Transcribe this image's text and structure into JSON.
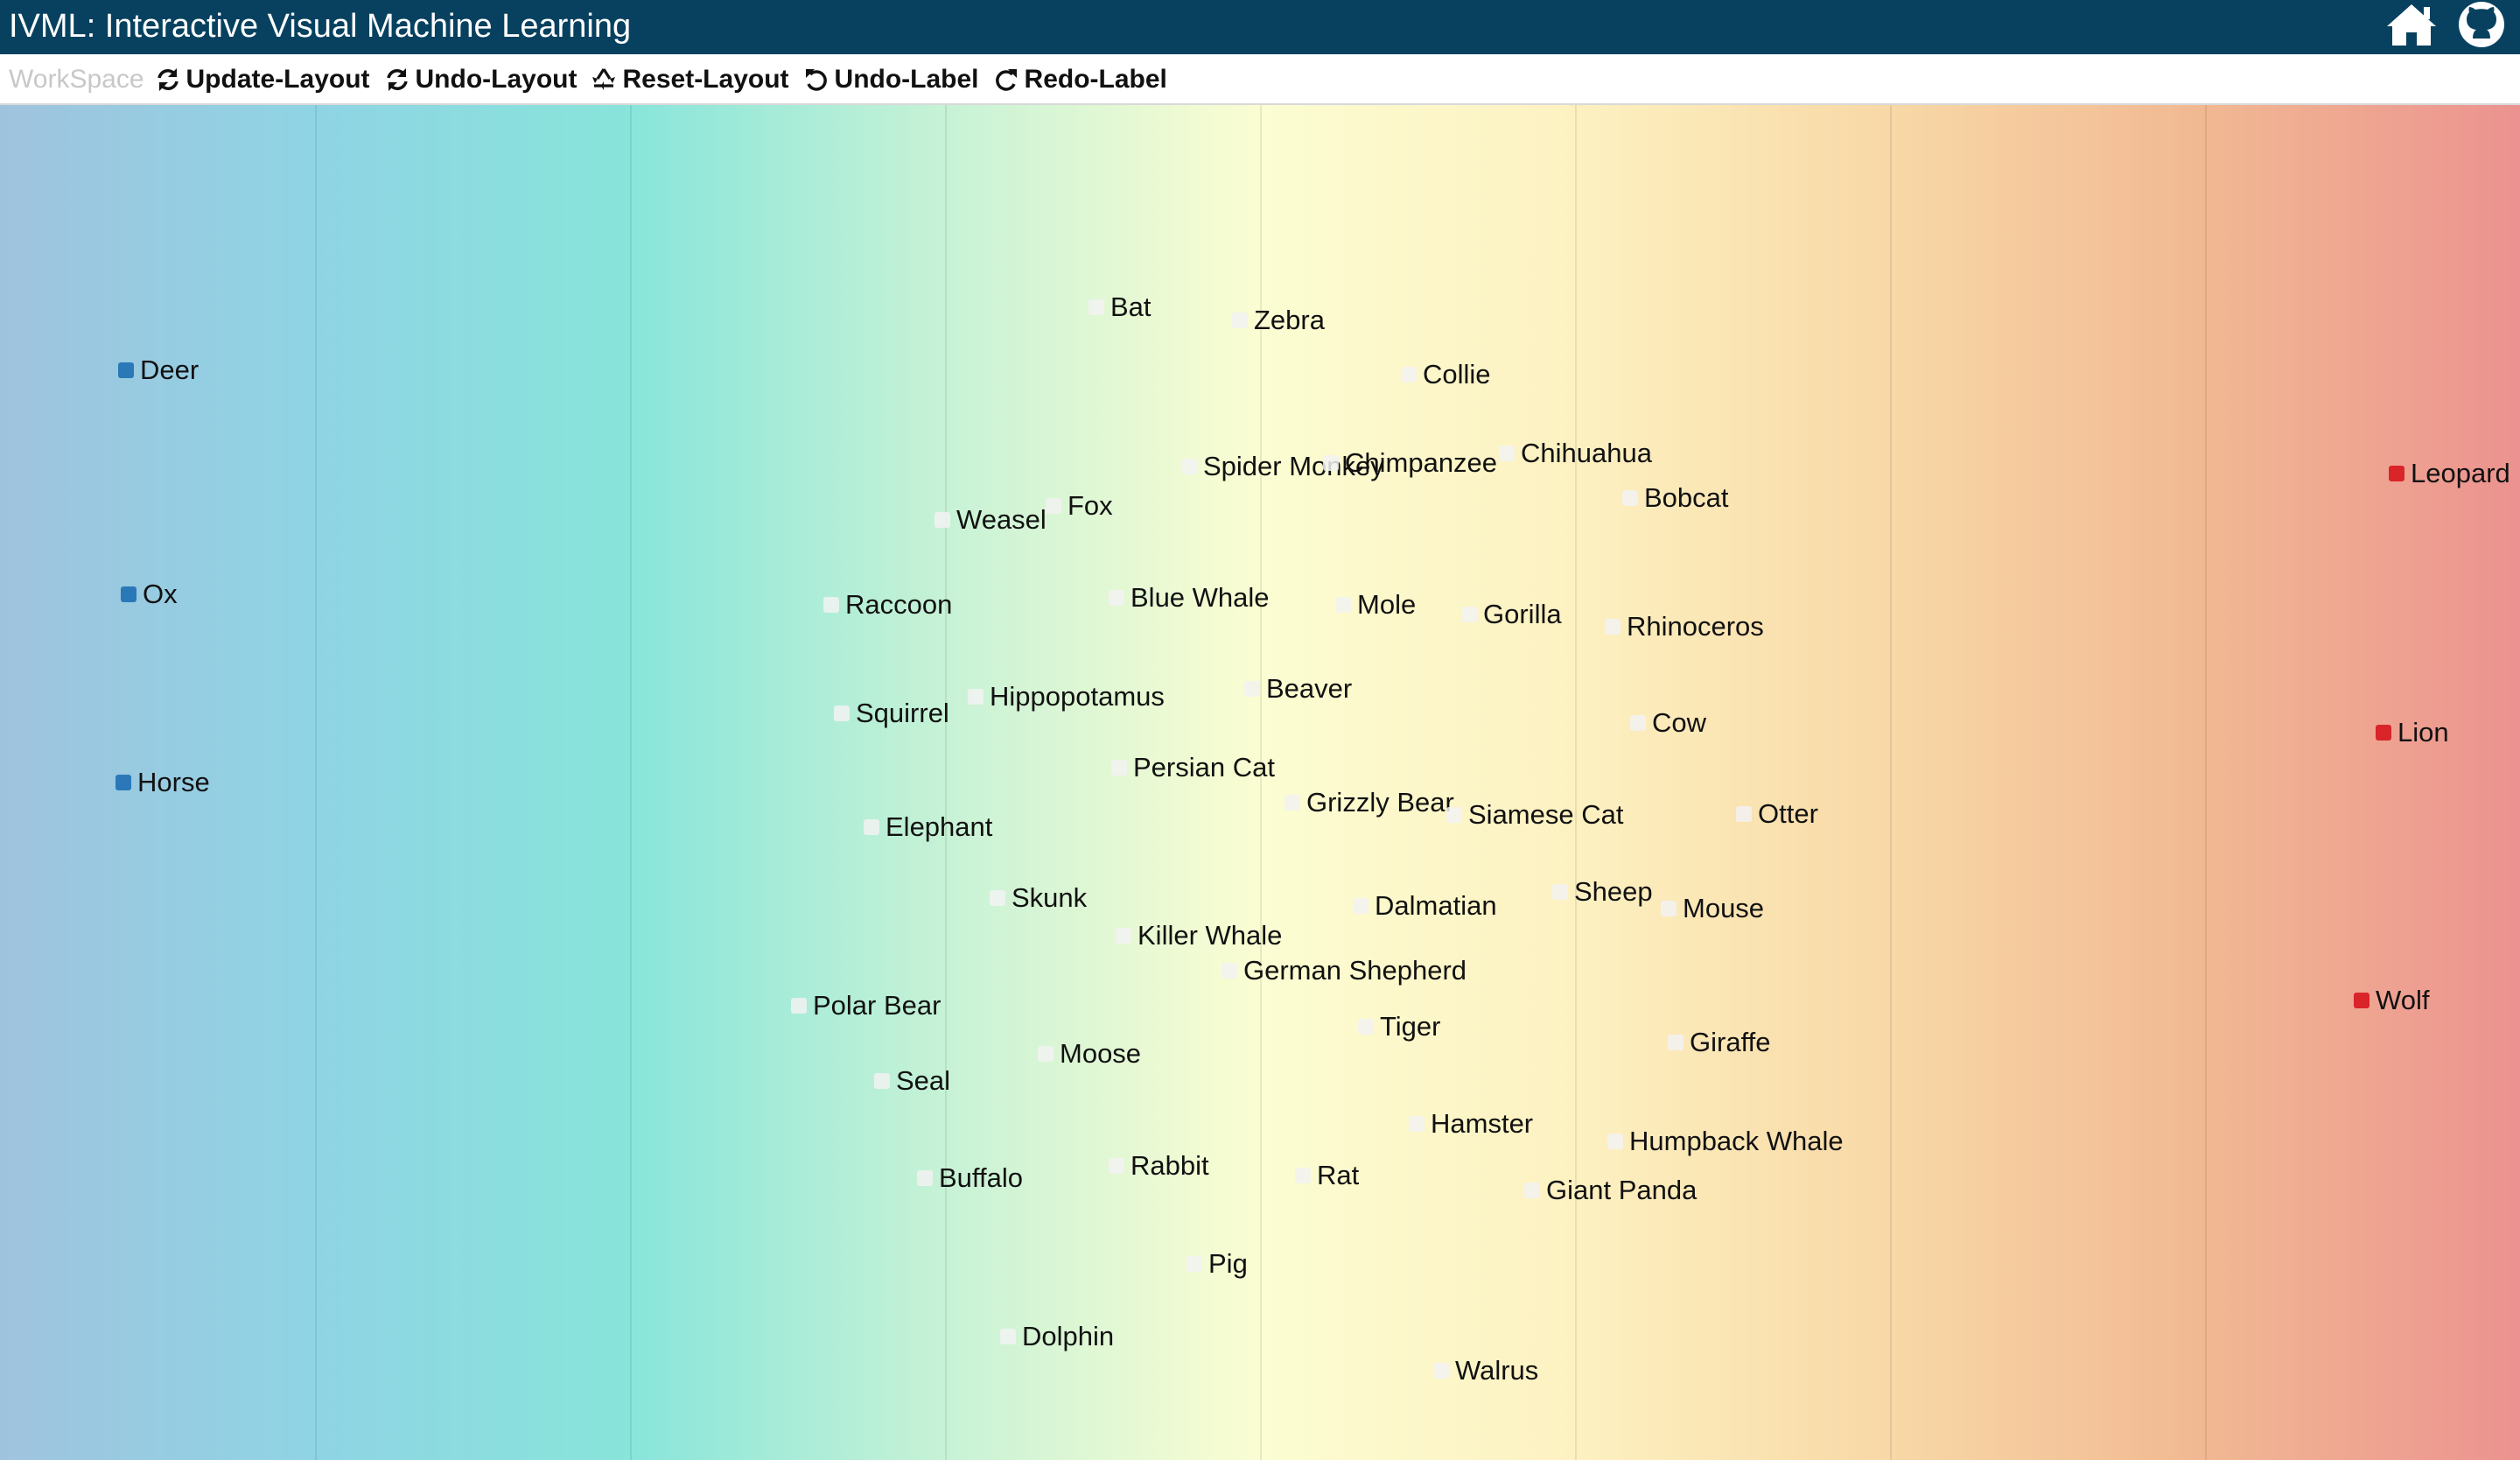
{
  "app": {
    "title": "IVML: Interactive Visual Machine Learning"
  },
  "header_icons": {
    "home": "home-icon",
    "github": "github-icon"
  },
  "toolbar": {
    "workspace_label": "WorkSpace",
    "buttons": [
      {
        "name": "update-layout-button",
        "icon": "refresh-icon",
        "label": "Update-Layout"
      },
      {
        "name": "undo-layout-button",
        "icon": "refresh-icon",
        "label": "Undo-Layout"
      },
      {
        "name": "reset-layout-button",
        "icon": "recycle-icon",
        "label": "Reset-Layout"
      },
      {
        "name": "undo-label-button",
        "icon": "undo-icon",
        "label": "Undo-Label"
      },
      {
        "name": "redo-label-button",
        "icon": "redo-icon",
        "label": "Redo-Label"
      }
    ]
  },
  "colors": {
    "header_bg": "#07415f",
    "class_left": "#2a78b8",
    "class_right": "#d9242a",
    "unlabeled": "#f2f2f2"
  },
  "chart_data": {
    "type": "scatter",
    "x_range": [
      0,
      1
    ],
    "y_range": [
      0,
      1
    ],
    "gridlines_x": [
      0.125,
      0.25,
      0.375,
      0.5,
      0.625,
      0.75,
      0.875
    ],
    "points": [
      {
        "label": "Deer",
        "x": 0.05,
        "y": 0.196,
        "cls": "blue"
      },
      {
        "label": "Ox",
        "x": 0.051,
        "y": 0.361,
        "cls": "blue"
      },
      {
        "label": "Horse",
        "x": 0.049,
        "y": 0.5,
        "cls": "blue"
      },
      {
        "label": "Leopard",
        "x": 0.951,
        "y": 0.272,
        "cls": "red"
      },
      {
        "label": "Lion",
        "x": 0.946,
        "y": 0.463,
        "cls": "red"
      },
      {
        "label": "Wolf",
        "x": 0.937,
        "y": 0.661,
        "cls": "red"
      },
      {
        "label": "Bat",
        "x": 0.435,
        "y": 0.149,
        "cls": "unl"
      },
      {
        "label": "Zebra",
        "x": 0.492,
        "y": 0.159,
        "cls": "unl"
      },
      {
        "label": "Collie",
        "x": 0.559,
        "y": 0.199,
        "cls": "unl"
      },
      {
        "label": "Chihuahua",
        "x": 0.598,
        "y": 0.257,
        "cls": "unl"
      },
      {
        "label": "Spider Monkey",
        "x": 0.472,
        "y": 0.267,
        "cls": "unl"
      },
      {
        "label": "Chimpanzee",
        "x": 0.528,
        "y": 0.264,
        "cls": "unl"
      },
      {
        "label": "Bobcat",
        "x": 0.647,
        "y": 0.29,
        "cls": "unl"
      },
      {
        "label": "Fox",
        "x": 0.418,
        "y": 0.296,
        "cls": "unl"
      },
      {
        "label": "Weasel",
        "x": 0.374,
        "y": 0.306,
        "cls": "unl"
      },
      {
        "label": "Raccoon",
        "x": 0.33,
        "y": 0.369,
        "cls": "unl"
      },
      {
        "label": "Blue Whale",
        "x": 0.443,
        "y": 0.364,
        "cls": "unl"
      },
      {
        "label": "Mole",
        "x": 0.533,
        "y": 0.369,
        "cls": "unl"
      },
      {
        "label": "Gorilla",
        "x": 0.583,
        "y": 0.376,
        "cls": "unl"
      },
      {
        "label": "Rhinoceros",
        "x": 0.64,
        "y": 0.385,
        "cls": "unl"
      },
      {
        "label": "Beaver",
        "x": 0.497,
        "y": 0.431,
        "cls": "unl"
      },
      {
        "label": "Hippopotamus",
        "x": 0.387,
        "y": 0.437,
        "cls": "unl"
      },
      {
        "label": "Squirrel",
        "x": 0.334,
        "y": 0.449,
        "cls": "unl"
      },
      {
        "label": "Cow",
        "x": 0.65,
        "y": 0.456,
        "cls": "unl"
      },
      {
        "label": "Persian Cat",
        "x": 0.444,
        "y": 0.489,
        "cls": "unl"
      },
      {
        "label": "Grizzly Bear",
        "x": 0.513,
        "y": 0.515,
        "cls": "unl"
      },
      {
        "label": "Siamese Cat",
        "x": 0.577,
        "y": 0.524,
        "cls": "unl"
      },
      {
        "label": "Otter",
        "x": 0.692,
        "y": 0.523,
        "cls": "unl"
      },
      {
        "label": "Elephant",
        "x": 0.346,
        "y": 0.533,
        "cls": "unl"
      },
      {
        "label": "Sheep",
        "x": 0.619,
        "y": 0.581,
        "cls": "unl"
      },
      {
        "label": "Skunk",
        "x": 0.396,
        "y": 0.585,
        "cls": "unl"
      },
      {
        "label": "Dalmatian",
        "x": 0.54,
        "y": 0.591,
        "cls": "unl"
      },
      {
        "label": "Mouse",
        "x": 0.662,
        "y": 0.593,
        "cls": "unl"
      },
      {
        "label": "Killer Whale",
        "x": 0.446,
        "y": 0.613,
        "cls": "unl"
      },
      {
        "label": "German Shepherd",
        "x": 0.488,
        "y": 0.639,
        "cls": "unl"
      },
      {
        "label": "Polar Bear",
        "x": 0.317,
        "y": 0.665,
        "cls": "unl"
      },
      {
        "label": "Tiger",
        "x": 0.542,
        "y": 0.68,
        "cls": "unl"
      },
      {
        "label": "Giraffe",
        "x": 0.665,
        "y": 0.692,
        "cls": "unl"
      },
      {
        "label": "Moose",
        "x": 0.415,
        "y": 0.7,
        "cls": "unl"
      },
      {
        "label": "Seal",
        "x": 0.35,
        "y": 0.72,
        "cls": "unl"
      },
      {
        "label": "Hamster",
        "x": 0.562,
        "y": 0.752,
        "cls": "unl"
      },
      {
        "label": "Humpback Whale",
        "x": 0.641,
        "y": 0.765,
        "cls": "unl"
      },
      {
        "label": "Rabbit",
        "x": 0.443,
        "y": 0.783,
        "cls": "unl"
      },
      {
        "label": "Rat",
        "x": 0.517,
        "y": 0.79,
        "cls": "unl"
      },
      {
        "label": "Buffalo",
        "x": 0.367,
        "y": 0.792,
        "cls": "unl"
      },
      {
        "label": "Giant Panda",
        "x": 0.608,
        "y": 0.801,
        "cls": "unl"
      },
      {
        "label": "Pig",
        "x": 0.474,
        "y": 0.855,
        "cls": "unl"
      },
      {
        "label": "Dolphin",
        "x": 0.4,
        "y": 0.909,
        "cls": "unl"
      },
      {
        "label": "Walrus",
        "x": 0.572,
        "y": 0.934,
        "cls": "unl"
      }
    ]
  }
}
